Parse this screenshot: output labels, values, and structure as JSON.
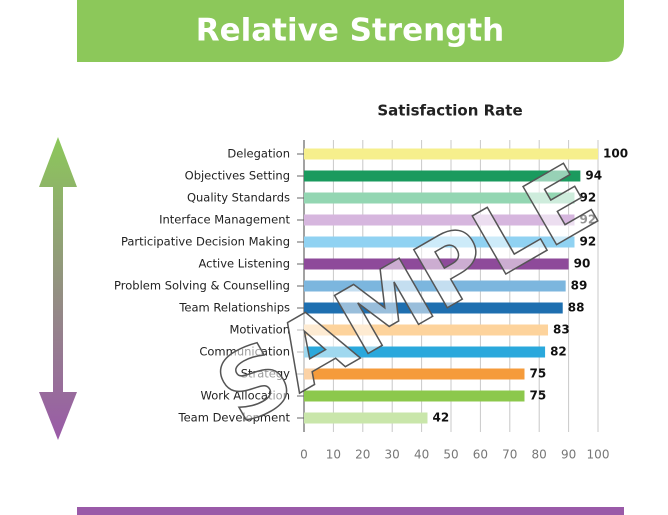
{
  "header": {
    "title": "Relative Strength"
  },
  "chart_data": {
    "type": "bar",
    "orientation": "horizontal",
    "title": "Satisfaction Rate",
    "categories": [
      "Delegation",
      "Objectives Setting",
      "Quality Standards",
      "Interface Management",
      "Participative Decision Making",
      "Active Listening",
      "Problem Solving & Counselling",
      "Team Relationships",
      "Motivation",
      "Communication",
      "Strategy",
      "Work Allocation",
      "Team Development"
    ],
    "values": [
      100,
      94,
      92,
      92,
      92,
      90,
      89,
      88,
      83,
      82,
      75,
      75,
      42
    ],
    "colors": [
      "#f6ef8c",
      "#1a9a5e",
      "#93d6b2",
      "#d6b6de",
      "#90d2f2",
      "#8e4a9a",
      "#7cb6de",
      "#1e6fb0",
      "#fdd39c",
      "#2aa8dc",
      "#f59b3b",
      "#8cc84c",
      "#c9e6aa"
    ],
    "xlim": [
      0,
      100
    ],
    "xticks": [
      0,
      10,
      20,
      30,
      40,
      50,
      60,
      70,
      80,
      90,
      100
    ],
    "grid": true,
    "watermark": "SAMPLE"
  }
}
